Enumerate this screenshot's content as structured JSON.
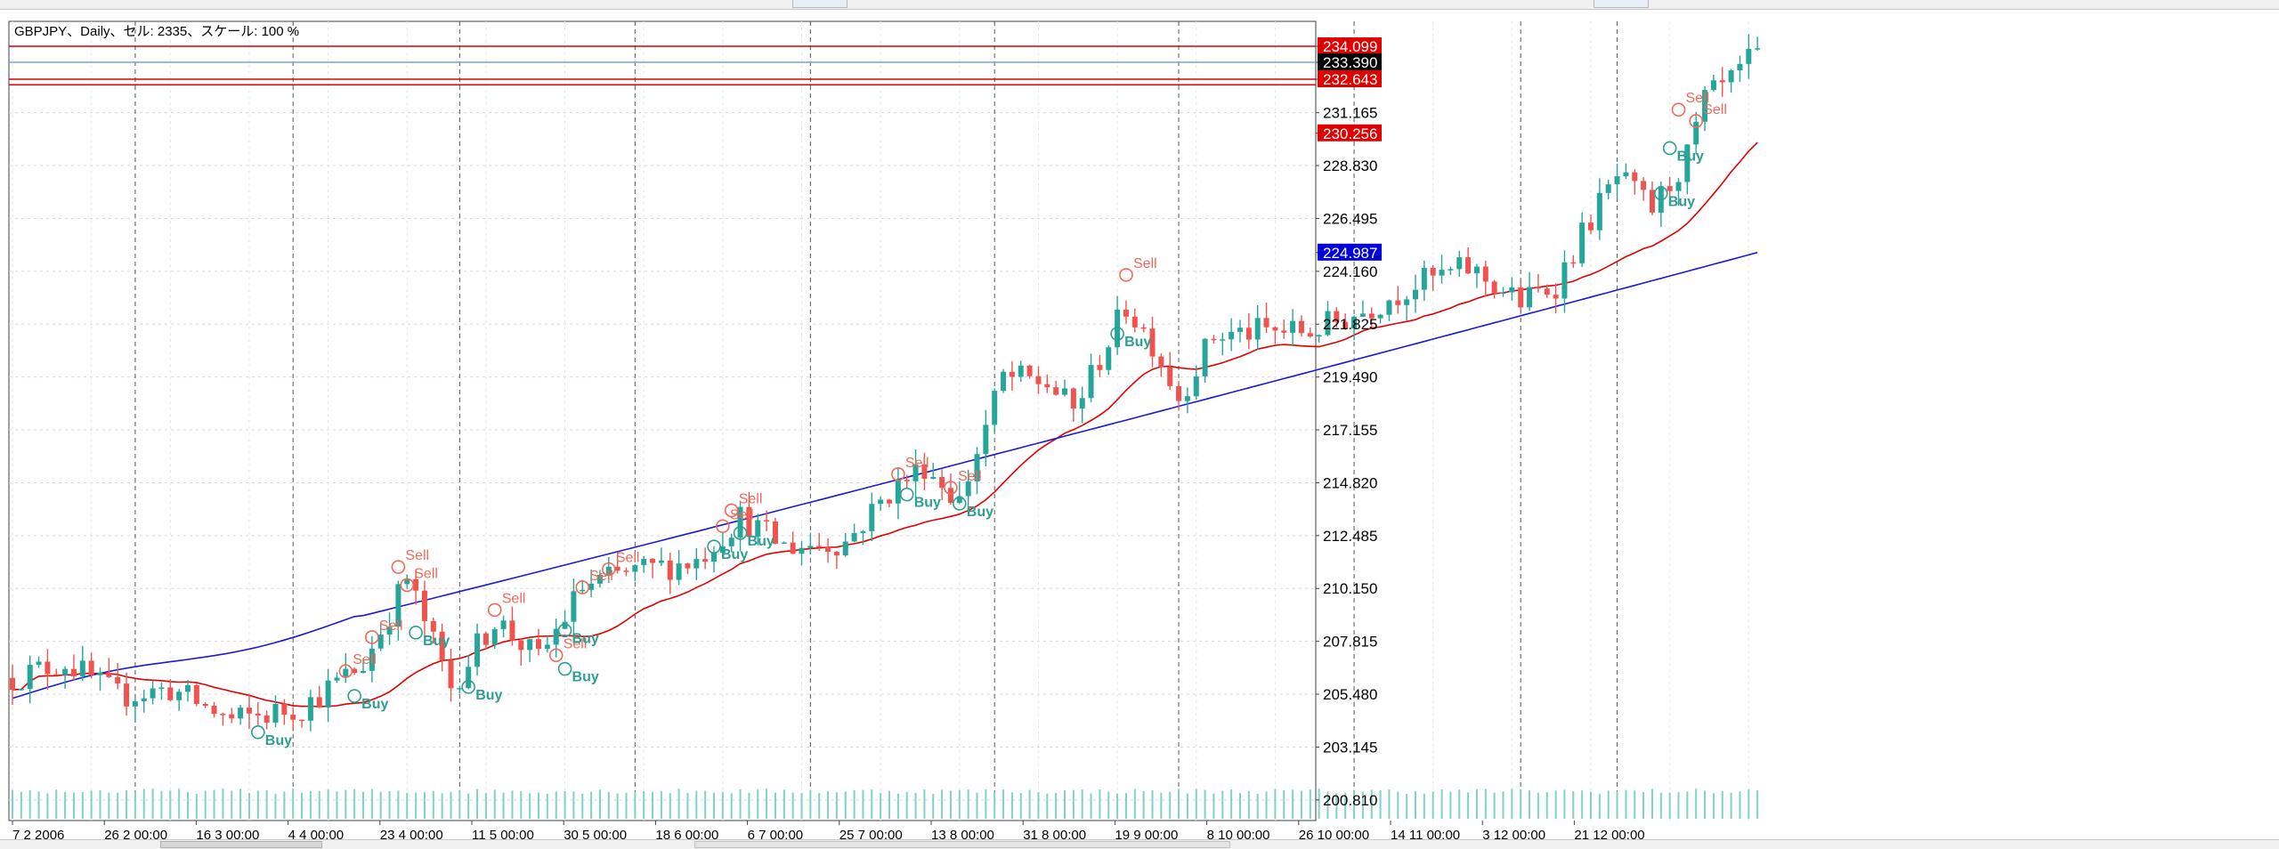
{
  "window": {
    "info_label": "GBPJPY、Daily、セル: 2335、スケール: 100 %"
  },
  "colors": {
    "bull": "#26a69a",
    "bear": "#ef5350",
    "ma_fast": "#e00000",
    "ma_slow": "#1a1ad6",
    "hline": "#e00000",
    "hline_blue": "#7f9fe0",
    "grid": "#d8d8d8",
    "sell_signal": "#f06a5a",
    "buy_signal": "#2e9e90"
  },
  "chart_data": {
    "type": "candlestick",
    "symbol": "GBPJPY",
    "timeframe": "Daily",
    "ylim": [
      199.9,
      235.2
    ],
    "y_ticks": [
      "234.099",
      "233.390",
      "232.643",
      "231.165",
      "230.256",
      "228.830",
      "226.495",
      "224.987",
      "224.160",
      "221.825",
      "219.490",
      "217.155",
      "214.820",
      "212.485",
      "210.150",
      "207.815",
      "205.480",
      "203.145",
      "200.810"
    ],
    "x_ticks": [
      "7 2 2006",
      "26 2 00:00",
      "16 3 00:00",
      "4 4 00:00",
      "23 4 00:00",
      "11 5 00:00",
      "30 5 00:00",
      "18 6 00:00",
      "6 7 00:00",
      "25 7 00:00",
      "13 8 00:00",
      "31 8 00:00",
      "19 9 00:00",
      "8 10 00:00",
      "26 10 00:00",
      "14 11 00:00",
      "3 12 00:00",
      "21 12 00:00"
    ],
    "current_price": "233.390",
    "horizontal_lines": [
      {
        "price": "234.099",
        "color": "red"
      },
      {
        "price": "232.643",
        "color": "red"
      },
      {
        "price": "232.400",
        "color": "red"
      },
      {
        "price": "233.390",
        "color": "blue"
      }
    ],
    "indicator_labels": [
      {
        "price": "230.256",
        "series": "ma_fast"
      },
      {
        "price": "224.987",
        "series": "ma_slow"
      }
    ],
    "anchors": [
      {
        "i": 0,
        "p": 206.2
      },
      {
        "i": 6,
        "p": 206.9
      },
      {
        "i": 12,
        "p": 205.4
      },
      {
        "i": 18,
        "p": 205.7
      },
      {
        "i": 25,
        "p": 204.3
      },
      {
        "i": 33,
        "p": 204.9
      },
      {
        "i": 40,
        "p": 206.8
      },
      {
        "i": 45,
        "p": 210.6
      },
      {
        "i": 50,
        "p": 205.8
      },
      {
        "i": 55,
        "p": 208.8
      },
      {
        "i": 60,
        "p": 207.0
      },
      {
        "i": 65,
        "p": 210.2
      },
      {
        "i": 70,
        "p": 210.8
      },
      {
        "i": 78,
        "p": 211.4
      },
      {
        "i": 83,
        "p": 213.3
      },
      {
        "i": 88,
        "p": 212.0
      },
      {
        "i": 95,
        "p": 212.2
      },
      {
        "i": 100,
        "p": 214.4
      },
      {
        "i": 104,
        "p": 215.6
      },
      {
        "i": 108,
        "p": 214.0
      },
      {
        "i": 113,
        "p": 219.5
      },
      {
        "i": 118,
        "p": 219.2
      },
      {
        "i": 121,
        "p": 218.0
      },
      {
        "i": 127,
        "p": 222.6
      },
      {
        "i": 130,
        "p": 221.0
      },
      {
        "i": 133,
        "p": 218.6
      },
      {
        "i": 137,
        "p": 221.3
      },
      {
        "i": 142,
        "p": 221.5
      },
      {
        "i": 148,
        "p": 221.5
      },
      {
        "i": 154,
        "p": 222.4
      },
      {
        "i": 160,
        "p": 223.6
      },
      {
        "i": 166,
        "p": 224.3
      },
      {
        "i": 172,
        "p": 222.8
      },
      {
        "i": 176,
        "p": 223.6
      },
      {
        "i": 180,
        "p": 226.5
      },
      {
        "i": 183,
        "p": 228.3
      },
      {
        "i": 187,
        "p": 226.9
      },
      {
        "i": 191,
        "p": 229.2
      },
      {
        "i": 193,
        "p": 231.7
      },
      {
        "i": 196,
        "p": 232.5
      },
      {
        "i": 198,
        "p": 233.4
      }
    ],
    "signals": [
      {
        "i": 44,
        "p": 211.1,
        "label": "Sell",
        "type": "sell"
      },
      {
        "i": 45,
        "p": 210.3,
        "label": "Sell",
        "type": "sell"
      },
      {
        "i": 41,
        "p": 208.0,
        "label": "Sell",
        "type": "sell"
      },
      {
        "i": 46,
        "p": 208.2,
        "label": "Buy",
        "type": "buy"
      },
      {
        "i": 38,
        "p": 206.5,
        "label": "Sell",
        "type": "sell"
      },
      {
        "i": 39,
        "p": 205.4,
        "label": "Buy",
        "type": "buy"
      },
      {
        "i": 28,
        "p": 203.8,
        "label": "Buy",
        "type": "buy"
      },
      {
        "i": 52,
        "p": 205.8,
        "label": "Buy",
        "type": "buy"
      },
      {
        "i": 55,
        "p": 209.2,
        "label": "Sell",
        "type": "sell"
      },
      {
        "i": 62,
        "p": 207.2,
        "label": "Sell",
        "type": "sell"
      },
      {
        "i": 63,
        "p": 208.3,
        "label": "Buy",
        "type": "buy"
      },
      {
        "i": 63,
        "p": 206.6,
        "label": "Buy",
        "type": "buy"
      },
      {
        "i": 65,
        "p": 210.2,
        "label": "Sell",
        "type": "sell"
      },
      {
        "i": 68,
        "p": 211.0,
        "label": "Sell",
        "type": "sell"
      },
      {
        "i": 82,
        "p": 213.6,
        "label": "Sell",
        "type": "sell"
      },
      {
        "i": 81,
        "p": 212.9,
        "label": "Sell",
        "type": "sell"
      },
      {
        "i": 83,
        "p": 212.6,
        "label": "Buy",
        "type": "buy"
      },
      {
        "i": 80,
        "p": 212.0,
        "label": "Buy",
        "type": "buy"
      },
      {
        "i": 101,
        "p": 215.2,
        "label": "Sell",
        "type": "sell"
      },
      {
        "i": 102,
        "p": 214.3,
        "label": "Buy",
        "type": "buy"
      },
      {
        "i": 107,
        "p": 214.6,
        "label": "Sell",
        "type": "sell"
      },
      {
        "i": 108,
        "p": 213.9,
        "label": "Buy",
        "type": "buy"
      },
      {
        "i": 127,
        "p": 224.0,
        "label": "Sell",
        "type": "sell"
      },
      {
        "i": 126,
        "p": 221.4,
        "label": "Buy",
        "type": "buy"
      },
      {
        "i": 190,
        "p": 231.3,
        "label": "Sell",
        "type": "sell"
      },
      {
        "i": 192,
        "p": 230.8,
        "label": "Sell",
        "type": "sell"
      },
      {
        "i": 189,
        "p": 229.6,
        "label": "Buy",
        "type": "buy"
      },
      {
        "i": 188,
        "p": 227.6,
        "label": "Buy",
        "type": "buy"
      }
    ]
  }
}
